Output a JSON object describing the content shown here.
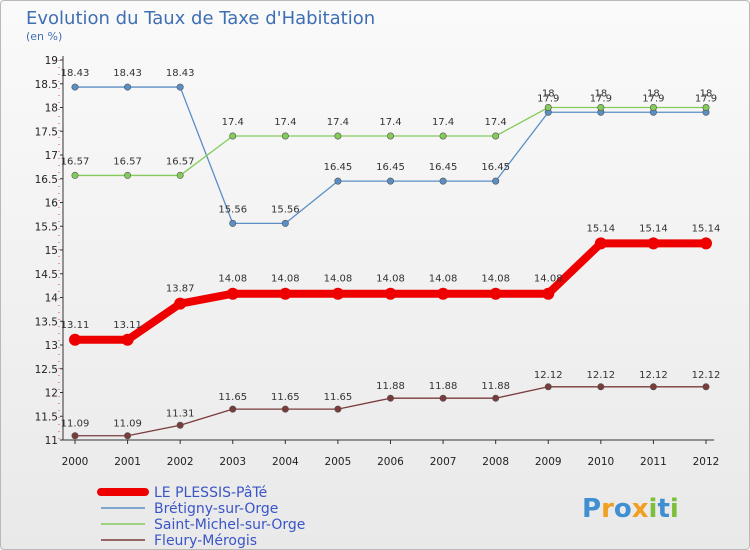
{
  "chart_data": {
    "type": "line",
    "title": "Evolution du Taux de Taxe d'Habitation",
    "subtitle": "(en %)",
    "x": [
      "2000",
      "2001",
      "2002",
      "2003",
      "2004",
      "2005",
      "2006",
      "2007",
      "2008",
      "2009",
      "2010",
      "2011",
      "2012"
    ],
    "ylim": [
      11,
      19
    ],
    "yticks": [
      "11",
      "11.5",
      "12",
      "12.5",
      "13",
      "13.5",
      "14",
      "14.5",
      "15",
      "15.5",
      "16",
      "16.5",
      "17",
      "17.5",
      "18",
      "18.5",
      "19"
    ],
    "grid": false,
    "legend_position": "bottom-left",
    "series": [
      {
        "name": "Brétigny-sur-Orge",
        "color": "#5a8fc6",
        "values": [
          18.43,
          18.43,
          18.43,
          15.56,
          15.56,
          16.45,
          16.45,
          16.45,
          16.45,
          17.9,
          17.9,
          17.9,
          17.9
        ],
        "labels": [
          "18.43",
          "18.43",
          "18.43",
          "15.56",
          "15.56",
          "16.45",
          "16.45",
          "16.45",
          "16.45",
          "17.9",
          "17.9",
          "17.9",
          "17.9"
        ]
      },
      {
        "name": "Saint-Michel-sur-Orge",
        "color": "#84cc5a",
        "values": [
          16.57,
          16.57,
          16.57,
          17.4,
          17.4,
          17.4,
          17.4,
          17.4,
          17.4,
          18,
          18,
          18,
          18
        ],
        "labels": [
          "16.57",
          "16.57",
          "16.57",
          "17.4",
          "17.4",
          "17.4",
          "17.4",
          "17.4",
          "17.4",
          "18",
          "18",
          "18",
          "18"
        ]
      },
      {
        "name": "Fleury-Mérogis",
        "color": "#7a3b3b",
        "values": [
          11.09,
          11.09,
          11.31,
          11.65,
          11.65,
          11.65,
          11.88,
          11.88,
          11.88,
          12.12,
          12.12,
          12.12,
          12.12
        ],
        "labels": [
          "11.09",
          "11.09",
          "11.31",
          "11.65",
          "11.65",
          "11.65",
          "11.88",
          "11.88",
          "11.88",
          "12.12",
          "12.12",
          "12.12",
          "12.12"
        ]
      },
      {
        "name": "LE PLESSIS-PâTé",
        "color": "#ee0000",
        "values": [
          13.11,
          13.11,
          13.87,
          14.08,
          14.08,
          14.08,
          14.08,
          14.08,
          14.08,
          14.08,
          15.14,
          15.14,
          15.14
        ],
        "labels": [
          "13.11",
          "13.11",
          "13.87",
          "14.08",
          "14.08",
          "14.08",
          "14.08",
          "14.08",
          "14.08",
          "14.08",
          "15.14",
          "15.14",
          "15.14"
        ]
      }
    ],
    "legend": [
      {
        "name": "LE PLESSIS-PâTé",
        "color": "#ee0000"
      },
      {
        "name": "Brétigny-sur-Orge",
        "color": "#5a8fc6"
      },
      {
        "name": "Saint-Michel-sur-Orge",
        "color": "#84cc5a"
      },
      {
        "name": "Fleury-Mérogis",
        "color": "#7a3b3b"
      }
    ]
  },
  "logo": {
    "text": "Proxiti",
    "letters": [
      "P",
      "r",
      "o",
      "x",
      "i",
      "t",
      "i"
    ],
    "colors": [
      "#3f8fd2",
      "#f0a020",
      "#3f8fd2",
      "#f0a020",
      "#7cbf3c",
      "#3f8fd2",
      "#7cbf3c"
    ]
  }
}
